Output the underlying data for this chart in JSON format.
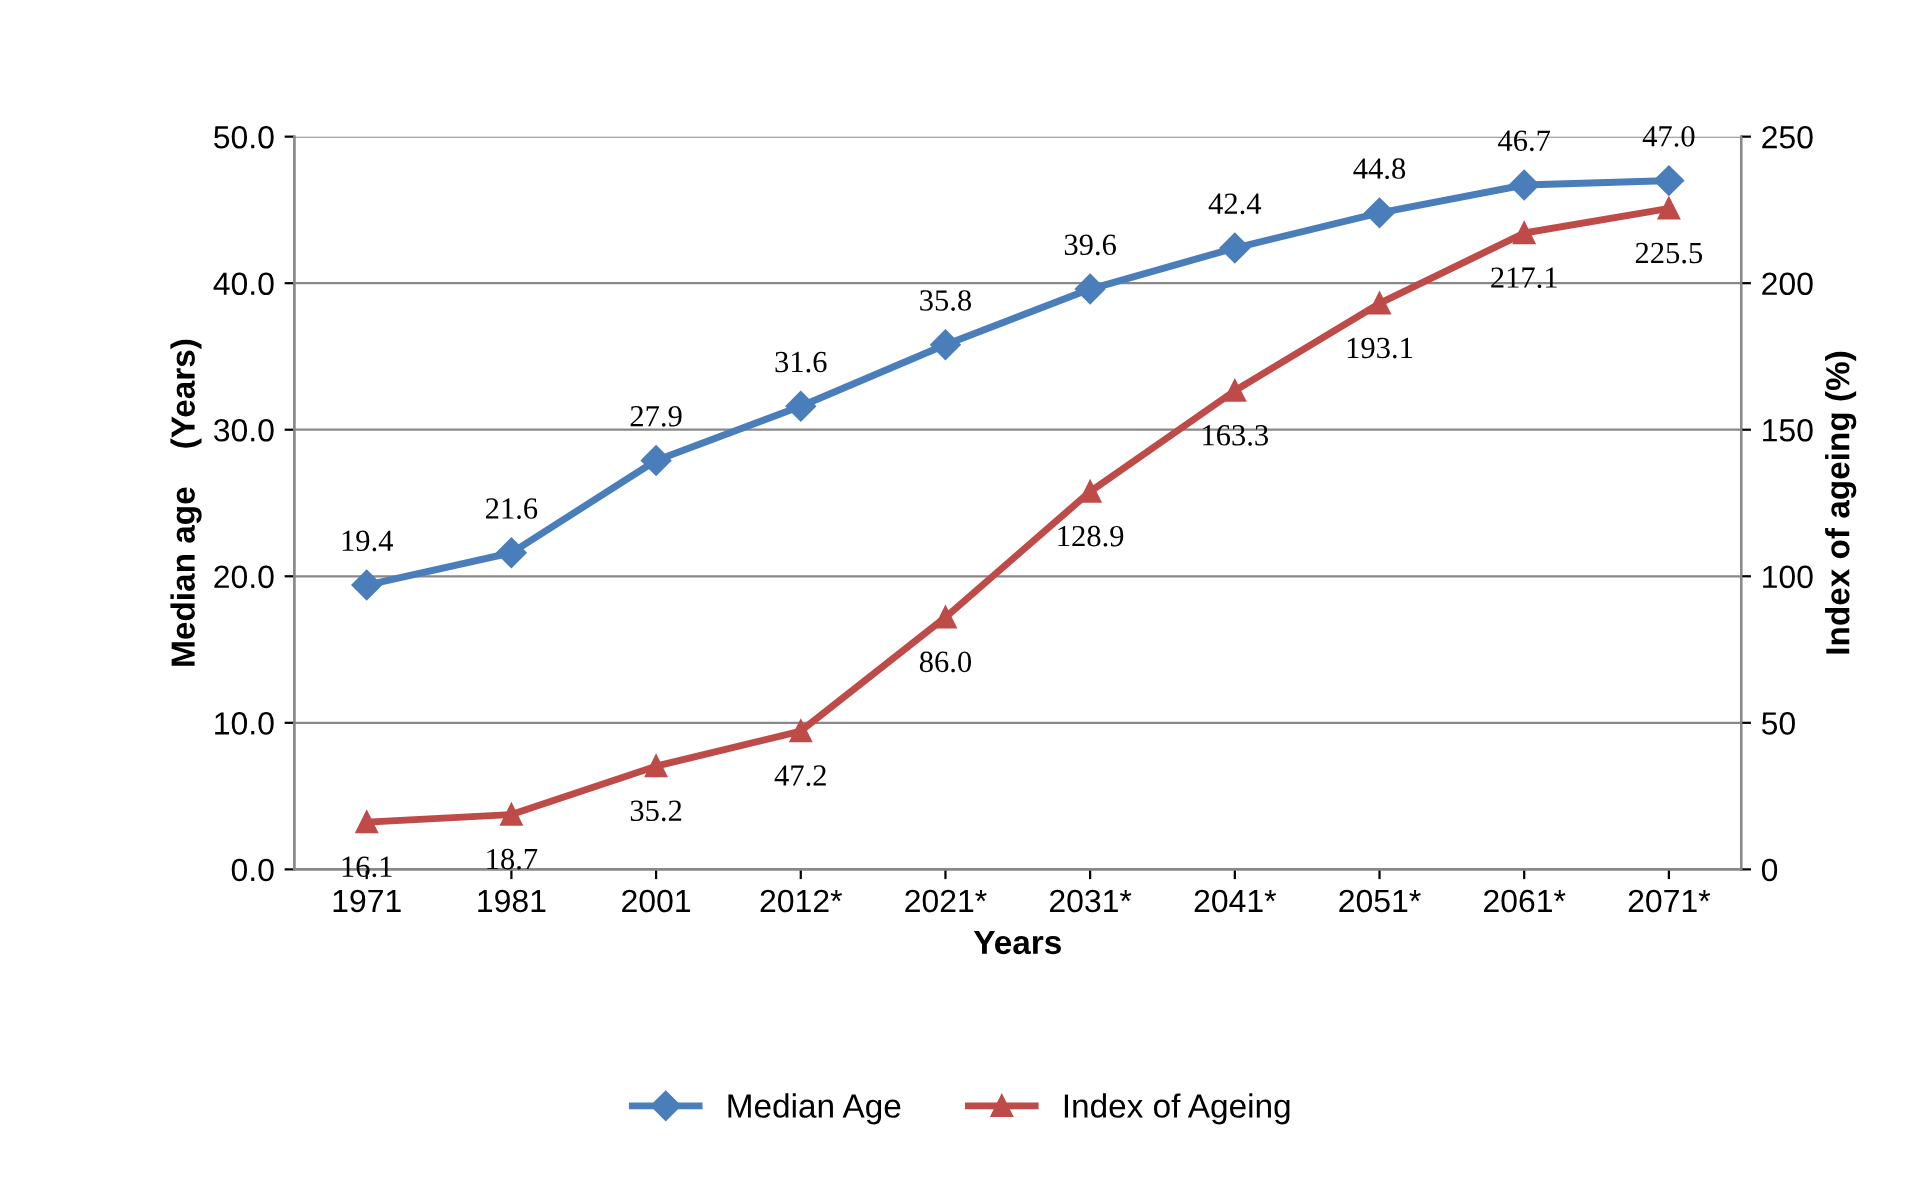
{
  "chart_data": {
    "type": "line",
    "xlabel": "Years",
    "ylabel": "Median age    (Years)",
    "y2label": "Index of ageing (%)",
    "categories": [
      "1971",
      "1981",
      "2001",
      "2012*",
      "2021*",
      "2031*",
      "2041*",
      "2051*",
      "2061*",
      "2071*"
    ],
    "series": [
      {
        "name": "Median Age",
        "color": "#4a7ebb",
        "marker": "diamond",
        "values": [
          19.4,
          21.6,
          27.9,
          31.6,
          35.8,
          39.6,
          42.4,
          44.8,
          46.7,
          47.0
        ],
        "value_labels": [
          "19.4",
          "21.6",
          "27.9",
          "31.6",
          "35.8",
          "39.6",
          "42.4",
          "44.8",
          "46.7",
          "47.0"
        ]
      },
      {
        "name": "Index of Ageing",
        "color": "#be4b48",
        "marker": "triangle",
        "axis": "y2",
        "values": [
          16.1,
          18.7,
          35.2,
          47.2,
          86.0,
          128.9,
          163.3,
          193.1,
          217.1,
          225.5
        ],
        "value_labels": [
          "16.1",
          "18.7",
          "35.2",
          "47.2",
          "86.0",
          "128.9",
          "163.3",
          "193.1",
          "217.1",
          "225.5"
        ]
      }
    ],
    "ylim": [
      0,
      50
    ],
    "yticks": [
      {
        "value": 0,
        "label": "0.0"
      },
      {
        "value": 10,
        "label": "10.0"
      },
      {
        "value": 20,
        "label": "20.0"
      },
      {
        "value": 30,
        "label": "30.0"
      },
      {
        "value": 40,
        "label": "40.0"
      },
      {
        "value": 50,
        "label": "50.0"
      }
    ],
    "y2lim": [
      0,
      250
    ],
    "y2ticks": [
      0,
      50,
      100,
      150,
      200,
      250
    ],
    "grid": "y",
    "legend": "bottom",
    "line_style": "solid"
  }
}
